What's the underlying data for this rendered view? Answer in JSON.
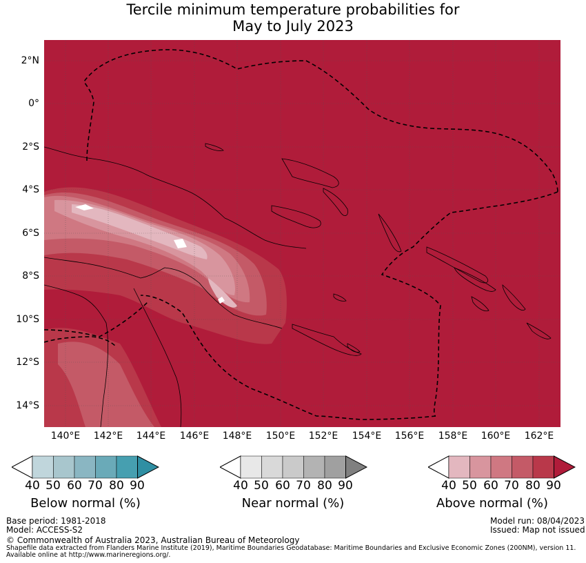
{
  "title_line1": "Tercile minimum temperature probabilities for",
  "title_line2": "May to July 2023",
  "lat_labels": [
    "2°N",
    "0°",
    "2°S",
    "4°S",
    "6°S",
    "8°S",
    "10°S",
    "12°S",
    "14°S"
  ],
  "lon_labels": [
    "140°E",
    "142°E",
    "144°E",
    "146°E",
    "148°E",
    "150°E",
    "152°E",
    "154°E",
    "156°E",
    "158°E",
    "160°E",
    "162°E"
  ],
  "colorbars": {
    "below": {
      "title": "Below normal (%)",
      "ticks": [
        "40",
        "50",
        "60",
        "70",
        "80",
        "90"
      ],
      "colors": [
        "#ffffff",
        "#c0d6dc",
        "#a8c6cd",
        "#8ab6c2",
        "#6aaab8",
        "#469fb0",
        "#2f8fa3"
      ]
    },
    "near": {
      "title": "Near normal (%)",
      "ticks": [
        "40",
        "50",
        "60",
        "70",
        "80",
        "90"
      ],
      "colors": [
        "#ffffff",
        "#e8e8e8",
        "#d9d9d9",
        "#cacaca",
        "#b3b3b3",
        "#a0a0a0",
        "#808080"
      ]
    },
    "above": {
      "title": "Above normal (%)",
      "ticks": [
        "40",
        "50",
        "60",
        "70",
        "80",
        "90"
      ],
      "colors": [
        "#ffffff",
        "#e3b7bf",
        "#d8959e",
        "#cf7882",
        "#c45a67",
        "#b9384a",
        "#b01c3a"
      ]
    }
  },
  "map_colors": {
    "above_90": "#b01c3a",
    "above_80": "#b9384a",
    "above_70": "#c45a67",
    "above_60": "#cf7882",
    "above_50": "#d8959e",
    "above_40": "#e3b7bf"
  },
  "footer": {
    "base_period": "Base period: 1981-2018",
    "model": "Model: ACCESS-S2",
    "model_run": "Model run: 08/04/2023",
    "issued": "Issued: Map not issued",
    "copyright": "© Commonwealth of Australia 2023, Australian Bureau of Meteorology",
    "shapefile_line1": "Shapefile data extracted from Flanders Marine Institute (2019), Maritime Boundaries Geodatabase: Maritime Boundaries and Exclusive Economic Zones (200NM), version 11.",
    "shapefile_line2": "Available online at http://www.marineregions.org/."
  }
}
